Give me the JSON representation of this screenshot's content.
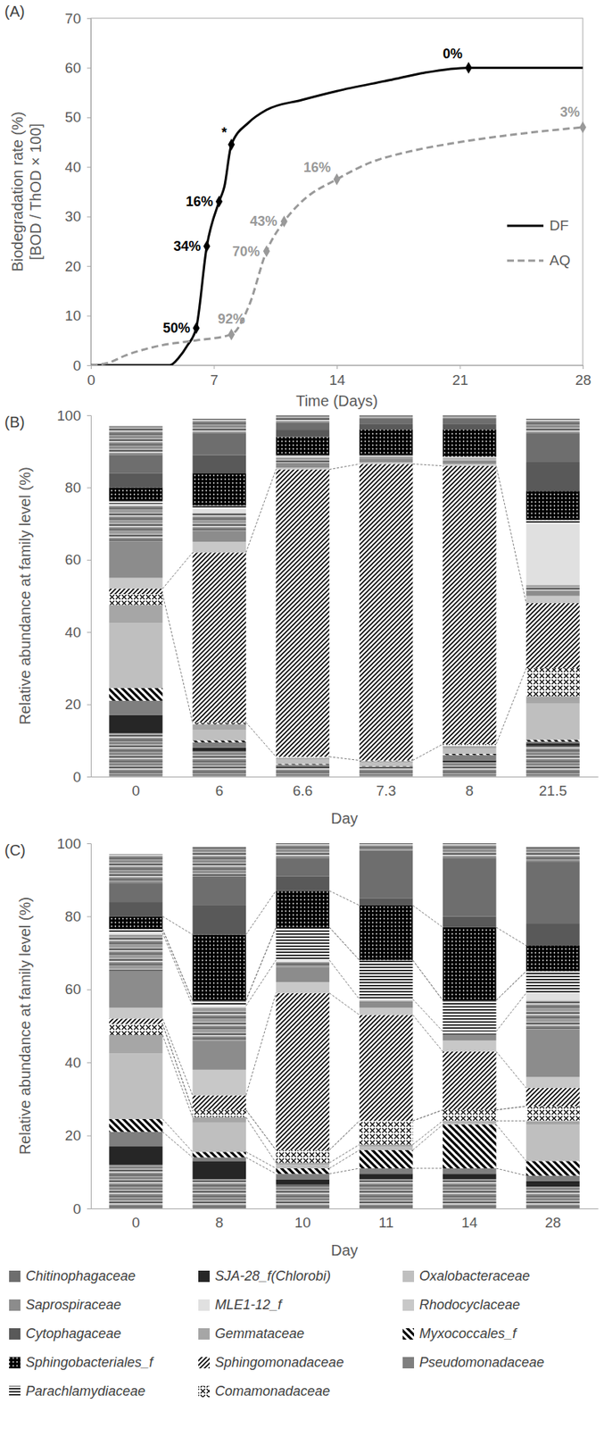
{
  "chart_data": [
    {
      "type": "line",
      "title": "(A)",
      "x_label": "Time (Days)",
      "y_label": [
        "Biodegradation rate (%)",
        "[BOD / ThOD × 100]"
      ],
      "xlim": [
        0,
        28
      ],
      "xticks": [
        0,
        7,
        14,
        21,
        28
      ],
      "ylim": [
        0,
        70
      ],
      "yticks": [
        0,
        10,
        20,
        30,
        40,
        50,
        60,
        70
      ],
      "legend": "right",
      "series": [
        {
          "name": "DF",
          "color": "#000000",
          "line_style": "solid",
          "x": [
            0,
            1,
            4.5,
            5,
            5.5,
            6,
            6.6,
            7.3,
            7.6,
            8,
            9,
            10,
            12,
            14,
            17,
            19,
            21.5,
            28
          ],
          "values": [
            0,
            0,
            0,
            1.5,
            4,
            7.5,
            24,
            33,
            36,
            44.5,
            49,
            51.5,
            53.5,
            55.3,
            57.5,
            59,
            60,
            60
          ]
        },
        {
          "name": "AQ",
          "color": "#999999",
          "line_style": "dashed",
          "x": [
            0,
            1,
            2,
            4,
            6,
            8,
            9,
            10,
            11,
            12,
            14,
            16,
            18,
            21,
            24,
            28
          ],
          "values": [
            0,
            0.5,
            2,
            4,
            5,
            6.2,
            12,
            23,
            29,
            33,
            37.5,
            41,
            43,
            45,
            46.5,
            48
          ]
        }
      ],
      "annotations": [
        {
          "series": 0,
          "x": 6,
          "y": 7.5,
          "text": "50%"
        },
        {
          "series": 0,
          "x": 6.6,
          "y": 24,
          "text": "34%"
        },
        {
          "series": 0,
          "x": 7.3,
          "y": 33,
          "text": "16%"
        },
        {
          "series": 0,
          "x": 8,
          "y": 44.5,
          "text": "*"
        },
        {
          "series": 0,
          "x": 21.5,
          "y": 60,
          "text": "0%"
        },
        {
          "series": 1,
          "x": 8,
          "y": 6.2,
          "text": "92%"
        },
        {
          "series": 1,
          "x": 10,
          "y": 23,
          "text": "70%"
        },
        {
          "series": 1,
          "x": 11,
          "y": 29,
          "text": "43%"
        },
        {
          "series": 1,
          "x": 14,
          "y": 37.5,
          "text": "16%"
        },
        {
          "series": 1,
          "x": 28,
          "y": 48,
          "text": "3%"
        }
      ]
    },
    {
      "type": "bar",
      "stacked": true,
      "title": "(B)",
      "x_label": "Day",
      "y_label": "Relative abundance at family level (%)",
      "categories": [
        "0",
        "6",
        "6.6",
        "7.3",
        "8",
        "21.5"
      ],
      "ylim": [
        0,
        100
      ],
      "yticks": [
        0,
        20,
        40,
        60,
        80,
        100
      ],
      "series": [
        {
          "name": null,
          "color": "#808080",
          "values": [
            12,
            7,
            2.5,
            2.3,
            4,
            8.5
          ]
        },
        {
          "name": "SJA-28_f(Chlorobi)",
          "color": "#262626",
          "values": [
            5,
            1,
            0.3,
            0.2,
            0.5,
            0.7
          ]
        },
        {
          "name": "Pseudomonadaceae",
          "color": "#7f7f7f",
          "values": [
            4,
            1.5,
            0.5,
            0.3,
            1.5,
            0.5
          ]
        },
        {
          "name": "Myxococcales_f",
          "color": "#000000",
          "values": [
            3.5,
            0.5,
            0.2,
            0.1,
            0.3,
            0.5
          ]
        },
        {
          "name": "Oxalobacteraceae",
          "color": "#bfbfbf",
          "values": [
            18,
            3,
            1.2,
            1,
            1.5,
            10
          ]
        },
        {
          "name": "Gemmataceae",
          "color": "#a6a6a6",
          "values": [
            5,
            1.5,
            0.5,
            0.4,
            0.7,
            2
          ]
        },
        {
          "name": "Comamonadaceae",
          "color": "#000000",
          "values": [
            3,
            0.5,
            0.3,
            0.2,
            0.5,
            7.8
          ]
        },
        {
          "name": "Sphingomonadaceae",
          "color": "#000000",
          "values": [
            1.5,
            47,
            79.5,
            82,
            77,
            18
          ]
        },
        {
          "name": "Rhodocyclaceae",
          "color": "#c8c8c8",
          "values": [
            3,
            3,
            0.5,
            0.5,
            0.5,
            2
          ]
        },
        {
          "name": "Saprospiraceae",
          "color": "#8c8c8c",
          "values": [
            10,
            3,
            1.3,
            1,
            1,
            1.5
          ]
        },
        {
          "name": null,
          "color": "#9a9a9a",
          "values": [
            10,
            5,
            1.5,
            0.5,
            0.5,
            1.5
          ]
        },
        {
          "name": "MLE1-12_f",
          "color": "#e0e0e0",
          "values": [
            0.5,
            1,
            0.5,
            0.3,
            0.2,
            17
          ]
        },
        {
          "name": "Parachlamydiaceae",
          "color": "#000000",
          "values": [
            1,
            1,
            0.2,
            0.2,
            0.3,
            1
          ]
        },
        {
          "name": "Sphingobacteriales_f",
          "color": "#000000",
          "values": [
            3.5,
            9,
            5,
            7,
            7.5,
            8
          ]
        },
        {
          "name": "Cytophagaceae",
          "color": "#595959",
          "values": [
            4,
            5,
            2,
            1.5,
            1.5,
            8
          ]
        },
        {
          "name": "Chitinophagaceae",
          "color": "#6e6e6e",
          "values": [
            5,
            6,
            2,
            1.5,
            1.5,
            8
          ]
        },
        {
          "name": null,
          "color": "#888888",
          "values": [
            8,
            4,
            2,
            1,
            1,
            4
          ]
        }
      ]
    },
    {
      "type": "bar",
      "stacked": true,
      "title": "(C)",
      "x_label": "Day",
      "y_label": "Relative abundance at family level (%)",
      "categories": [
        "0",
        "8",
        "10",
        "11",
        "14",
        "28"
      ],
      "ylim": [
        0,
        100
      ],
      "yticks": [
        0,
        20,
        40,
        60,
        80,
        100
      ],
      "legend": "bottom",
      "series": [
        {
          "name": null,
          "color": "#808080",
          "values": [
            12,
            8,
            6.5,
            8,
            8,
            6
          ]
        },
        {
          "name": "SJA-28_f(Chlorobi)",
          "color": "#262626",
          "values": [
            5,
            5,
            1.5,
            1.5,
            1.5,
            1.5
          ]
        },
        {
          "name": "Pseudomonadaceae",
          "color": "#7f7f7f",
          "values": [
            4,
            1,
            1.5,
            1.5,
            1.5,
            1.5
          ]
        },
        {
          "name": "Myxococcales_f",
          "color": "#000000",
          "values": [
            3.5,
            1.5,
            1.5,
            5,
            12,
            4
          ]
        },
        {
          "name": "Oxalobacteraceae",
          "color": "#bfbfbf",
          "values": [
            18,
            8,
            1,
            1,
            0.5,
            10
          ]
        },
        {
          "name": "Gemmataceae",
          "color": "#a6a6a6",
          "values": [
            5,
            1.5,
            0.5,
            0.5,
            0.5,
            1
          ]
        },
        {
          "name": "Comamonadaceae",
          "color": "#000000",
          "values": [
            3,
            2,
            3.5,
            6.5,
            3,
            4
          ]
        },
        {
          "name": "Sphingomonadaceae",
          "color": "#000000",
          "values": [
            1.5,
            4,
            43,
            29,
            16,
            5
          ]
        },
        {
          "name": "Rhodocyclaceae",
          "color": "#c8c8c8",
          "values": [
            3,
            7,
            3,
            2,
            3,
            3
          ]
        },
        {
          "name": "Saprospiraceae",
          "color": "#8c8c8c",
          "values": [
            10,
            8,
            4,
            1.5,
            1.5,
            13
          ]
        },
        {
          "name": null,
          "color": "#9a9a9a",
          "values": [
            10,
            9,
            1.5,
            0.5,
            0.5,
            8
          ]
        },
        {
          "name": "MLE1-12_f",
          "color": "#e0e0e0",
          "values": [
            0.5,
            0.5,
            0.5,
            0.3,
            0.5,
            2
          ]
        },
        {
          "name": "Parachlamydiaceae",
          "color": "#000000",
          "values": [
            1,
            1.5,
            9,
            10.7,
            8.5,
            6
          ]
        },
        {
          "name": "Sphingobacteriales_f",
          "color": "#000000",
          "values": [
            3.5,
            18,
            10,
            15,
            20,
            7
          ]
        },
        {
          "name": "Cytophagaceae",
          "color": "#595959",
          "values": [
            4,
            8,
            4,
            2,
            3,
            6
          ]
        },
        {
          "name": "Chitinophagaceae",
          "color": "#6e6e6e",
          "values": [
            5,
            8,
            5,
            13,
            16,
            17
          ]
        },
        {
          "name": null,
          "color": "#888888",
          "values": [
            8,
            8,
            4,
            2,
            4,
            4
          ]
        }
      ]
    }
  ]
}
